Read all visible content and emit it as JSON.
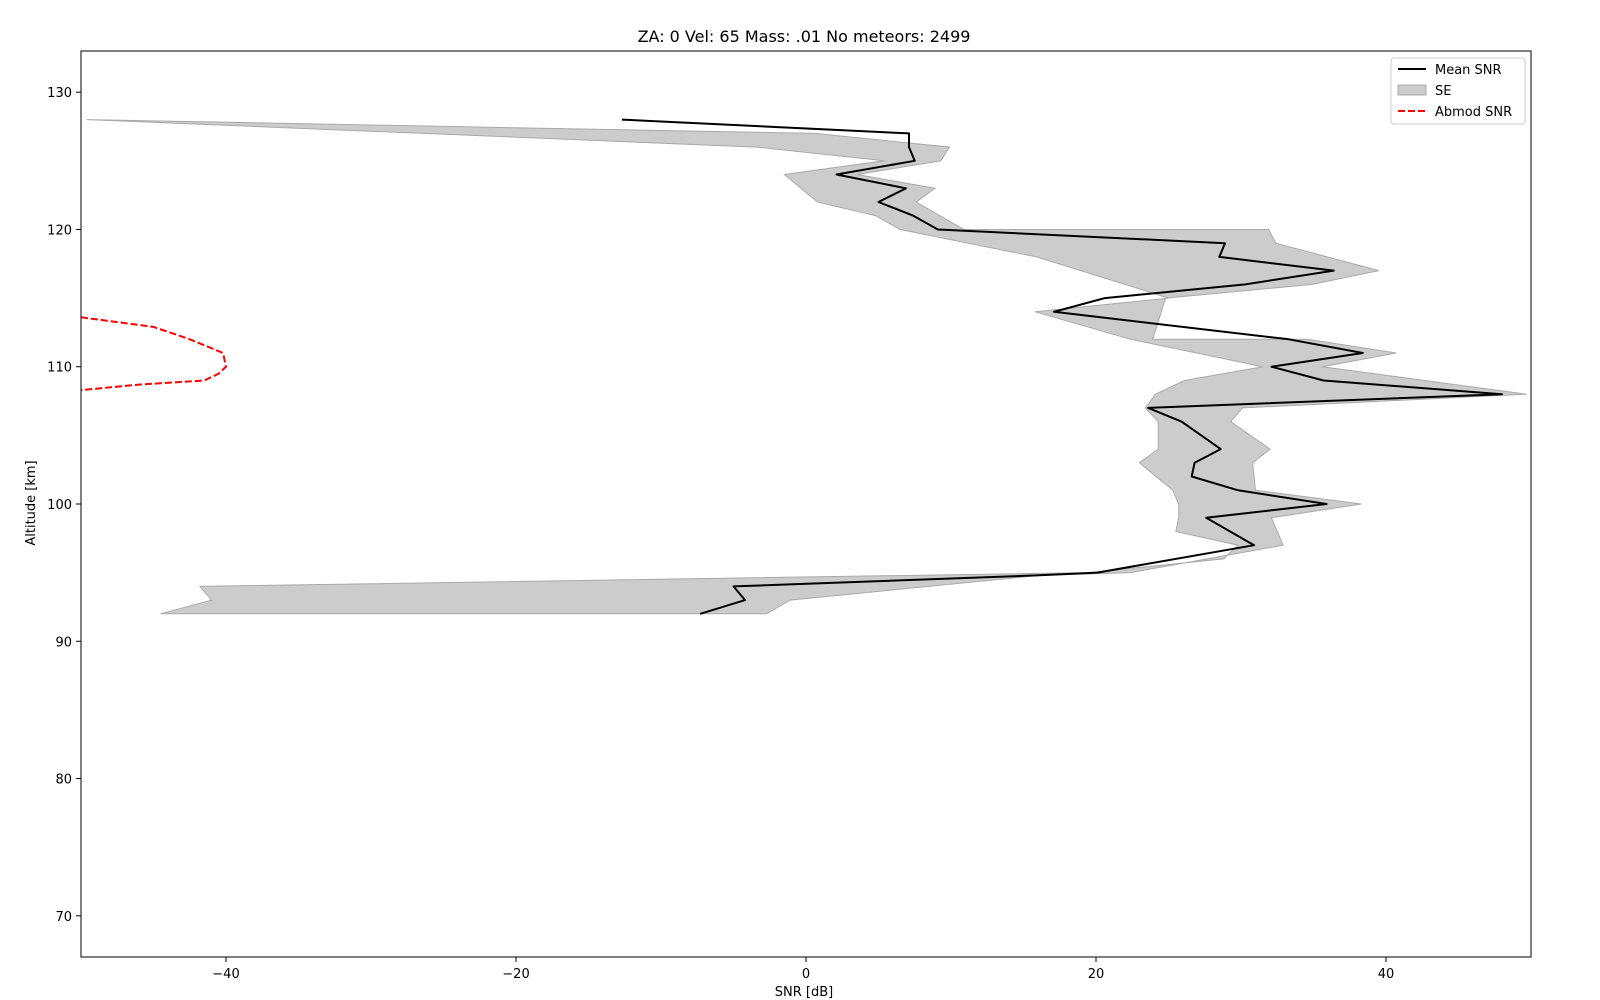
{
  "chart_data": {
    "type": "line",
    "title": "ZA: 0 Vel: 65 Mass: .01 No meteors: 2499",
    "xlabel": "SNR [dB]",
    "ylabel": "Altitude [km]",
    "xlim": [
      -50,
      50
    ],
    "ylim": [
      67,
      133
    ],
    "xticks": [
      -40,
      -20,
      0,
      20,
      40
    ],
    "xtick_labels": [
      "−40",
      "−20",
      "0",
      "20",
      "40"
    ],
    "yticks": [
      70,
      80,
      90,
      100,
      110,
      120,
      130
    ],
    "ytick_labels": [
      "70",
      "80",
      "90",
      "100",
      "110",
      "120",
      "130"
    ],
    "grid": false,
    "legend_position": "top-right",
    "colors": {
      "mean": "#000000",
      "se_fill": "#cccccc",
      "se_edge": "#aaaaaa",
      "abmod": "#ff0000"
    },
    "series": [
      {
        "name": "Mean SNR",
        "style": "solid",
        "x": [
          -12.7,
          7.1,
          7.1,
          7.5,
          2.1,
          6.9,
          5.0,
          7.4,
          9.1,
          28.9,
          28.5,
          36.4,
          30.3,
          20.6,
          17.1,
          33.3,
          38.4,
          32.1,
          35.7,
          48.0,
          23.6,
          25.9,
          28.6,
          26.8,
          26.6,
          29.8,
          35.9,
          27.6,
          30.9,
          20.1,
          15.9,
          -5.0,
          -4.2,
          -7.3
        ],
        "y": [
          128,
          127,
          126,
          125,
          124,
          123,
          122,
          121,
          120,
          119,
          118,
          117,
          116,
          115,
          114,
          112,
          111,
          110,
          109,
          108,
          107,
          106,
          104,
          103,
          102,
          101,
          100,
          99,
          97,
          95,
          94.8,
          94,
          93,
          92
        ]
      },
      {
        "name": "SE",
        "style": "fill",
        "upper_x": [
          -49.6,
          0.6,
          9.9,
          9.3,
          3.5,
          8.9,
          7.6,
          10.9,
          31.9,
          32.4,
          39.5,
          34.9,
          24.8,
          23.9,
          34.6,
          40.7,
          35.6,
          49.7,
          30.1,
          29.3,
          32.0,
          30.8,
          31.0,
          38.3,
          32.1,
          32.9,
          22.4,
          16.1,
          -1.1,
          -2.7
        ],
        "upper_y": [
          128,
          127,
          126,
          125,
          124,
          123,
          122,
          120,
          120,
          119,
          117,
          116,
          115,
          112,
          112,
          111,
          110,
          108,
          107,
          106,
          104,
          103,
          101,
          100,
          99,
          97,
          95,
          94.8,
          93,
          92
        ],
        "lower_x": [
          -49.6,
          -3.4,
          5.4,
          -1.5,
          0.8,
          4.8,
          6.5,
          15.9,
          22.0,
          25.0,
          15.8,
          22.4,
          31.5,
          26.1,
          24.1,
          23.4,
          24.3,
          24.3,
          23.0,
          25.3,
          25.7,
          25.7,
          25.5,
          29.8,
          28.8,
          19.5,
          -41.8,
          -41.0,
          -44.5
        ],
        "lower_y": [
          128,
          126,
          125,
          124,
          122,
          121,
          120,
          118,
          116,
          115,
          114,
          112,
          110,
          109,
          108,
          107,
          106,
          104,
          103,
          101,
          100,
          99,
          98,
          97,
          96,
          95,
          94,
          93,
          92
        ]
      },
      {
        "name": "Abmod SNR",
        "style": "dashed",
        "x": [
          -50.0,
          -45.0,
          -42.5,
          -40.2,
          -40.0,
          -40.5,
          -41.5,
          -46.0,
          -50.0
        ],
        "y": [
          113.6,
          112.9,
          112.0,
          111.0,
          110.0,
          109.5,
          109.0,
          108.7,
          108.3
        ]
      }
    ]
  }
}
